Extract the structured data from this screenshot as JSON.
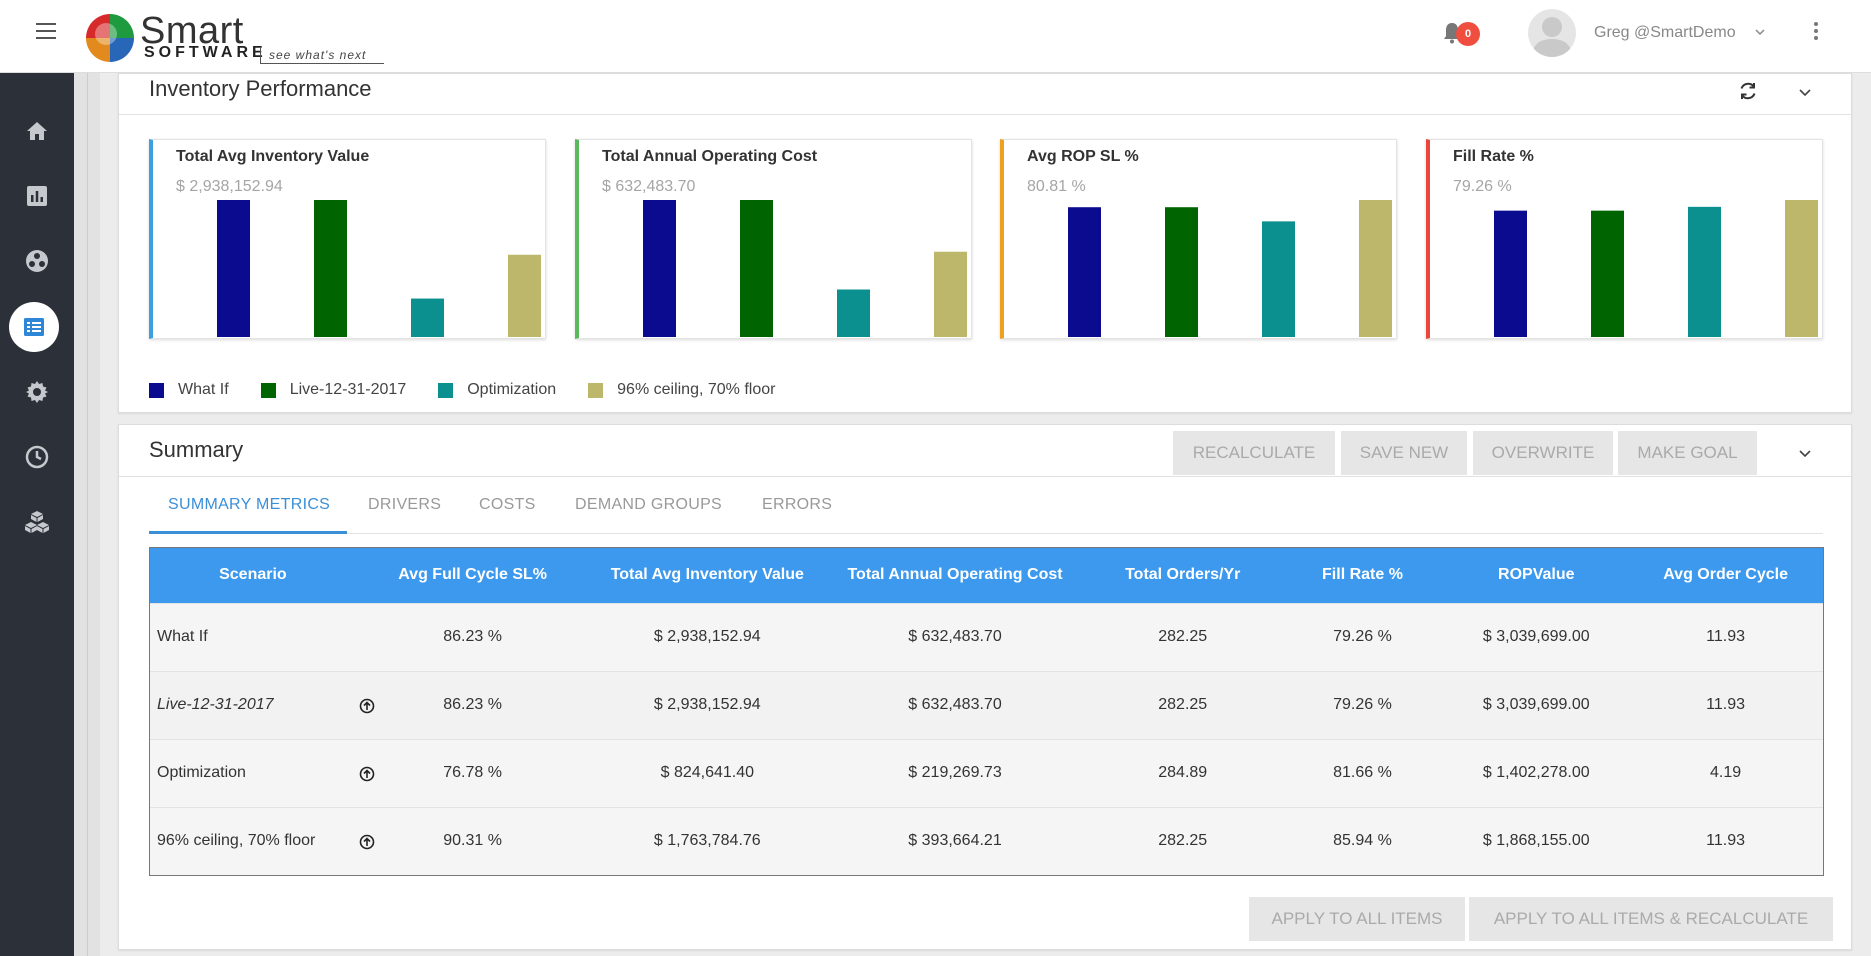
{
  "header": {
    "logo_main": "Smart",
    "logo_sub": "SOFTWARE",
    "logo_tagline": "see what's next",
    "notification_count": "0",
    "user_name": "Greg @SmartDemo",
    "icons": [
      "hamburger-icon",
      "bell-icon",
      "avatar",
      "chevron-down-icon",
      "kebab-icon"
    ]
  },
  "sidebar": {
    "items": [
      {
        "name": "home",
        "icon": "home-icon"
      },
      {
        "name": "reports",
        "icon": "bar-chart-icon"
      },
      {
        "name": "network",
        "icon": "network-icon"
      },
      {
        "name": "list",
        "icon": "list-icon",
        "active": true
      },
      {
        "name": "settings",
        "icon": "gear-icon"
      },
      {
        "name": "history",
        "icon": "clock-icon"
      },
      {
        "name": "inventory",
        "icon": "boxes-icon"
      }
    ]
  },
  "inventory_performance": {
    "title": "Inventory Performance",
    "kpis": [
      {
        "title": "Total Avg Inventory Value",
        "value": "$ 2,938,152.94",
        "accent": "#3b9fe0"
      },
      {
        "title": "Total Annual Operating Cost",
        "value": "$ 632,483.70",
        "accent": "#5cb85c"
      },
      {
        "title": "Avg ROP SL %",
        "value": "80.81 %",
        "accent": "#f0a020"
      },
      {
        "title": "Fill Rate %",
        "value": "79.26 %",
        "accent": "#e8473b"
      }
    ],
    "legend": [
      {
        "label": "What If",
        "color": "#0b0b8f"
      },
      {
        "label": "Live-12-31-2017",
        "color": "#006400"
      },
      {
        "label": "Optimization",
        "color": "#0b8f8f"
      },
      {
        "label": "96% ceiling, 70% floor",
        "color": "#bdb76b"
      }
    ]
  },
  "chart_data": [
    {
      "type": "bar",
      "title": "Total Avg Inventory Value",
      "categories": [
        "What If",
        "Live-12-31-2017",
        "Optimization",
        "96% ceiling, 70% floor"
      ],
      "values": [
        2938152.94,
        2938152.94,
        824641.4,
        1763784.76
      ],
      "colors": [
        "#0b0b8f",
        "#006400",
        "#0b8f8f",
        "#bdb76b"
      ]
    },
    {
      "type": "bar",
      "title": "Total Annual Operating Cost",
      "categories": [
        "What If",
        "Live-12-31-2017",
        "Optimization",
        "96% ceiling, 70% floor"
      ],
      "values": [
        632483.7,
        632483.7,
        219269.73,
        393664.21
      ],
      "colors": [
        "#0b0b8f",
        "#006400",
        "#0b8f8f",
        "#bdb76b"
      ]
    },
    {
      "type": "bar",
      "title": "Avg ROP SL %",
      "categories": [
        "What If",
        "Live-12-31-2017",
        "Optimization",
        "96% ceiling, 70% floor"
      ],
      "values": [
        80.81,
        80.81,
        72.0,
        85.3
      ],
      "colors": [
        "#0b0b8f",
        "#006400",
        "#0b8f8f",
        "#bdb76b"
      ]
    },
    {
      "type": "bar",
      "title": "Fill Rate %",
      "categories": [
        "What If",
        "Live-12-31-2017",
        "Optimization",
        "96% ceiling, 70% floor"
      ],
      "values": [
        79.26,
        79.26,
        81.66,
        85.94
      ],
      "colors": [
        "#0b0b8f",
        "#006400",
        "#0b8f8f",
        "#bdb76b"
      ]
    }
  ],
  "summary": {
    "title": "Summary",
    "buttons": {
      "recalculate": "RECALCULATE",
      "save_new": "SAVE NEW",
      "overwrite": "OVERWRITE",
      "make_goal": "MAKE GOAL"
    },
    "tabs": [
      "SUMMARY METRICS",
      "DRIVERS",
      "COSTS",
      "DEMAND GROUPS",
      "ERRORS"
    ],
    "columns": [
      "Scenario",
      "Avg Full Cycle SL%",
      "Total Avg Inventory Value",
      "Total Annual Operating Cost",
      "Total Orders/Yr",
      "Fill Rate %",
      "ROPValue",
      "Avg Order Cycle"
    ],
    "rows": [
      {
        "scenario": "What If",
        "italic": false,
        "has_up": false,
        "cells": [
          "86.23 %",
          "$ 2,938,152.94",
          "$ 632,483.70",
          "282.25",
          "79.26 %",
          "$ 3,039,699.00",
          "11.93"
        ]
      },
      {
        "scenario": "Live-12-31-2017",
        "italic": true,
        "has_up": true,
        "cells": [
          "86.23 %",
          "$ 2,938,152.94",
          "$ 632,483.70",
          "282.25",
          "79.26 %",
          "$ 3,039,699.00",
          "11.93"
        ]
      },
      {
        "scenario": "Optimization",
        "italic": false,
        "has_up": true,
        "cells": [
          "76.78 %",
          "$ 824,641.40",
          "$ 219,269.73",
          "284.89",
          "81.66 %",
          "$ 1,402,278.00",
          "4.19"
        ]
      },
      {
        "scenario": "96% ceiling, 70% floor",
        "italic": false,
        "has_up": true,
        "cells": [
          "90.31 %",
          "$ 1,763,784.76",
          "$ 393,664.21",
          "282.25",
          "85.94 %",
          "$ 1,868,155.00",
          "11.93"
        ]
      }
    ],
    "bottom_buttons": {
      "apply_all": "APPLY TO ALL ITEMS",
      "apply_all_recalc": "APPLY TO ALL ITEMS & RECALCULATE"
    }
  }
}
